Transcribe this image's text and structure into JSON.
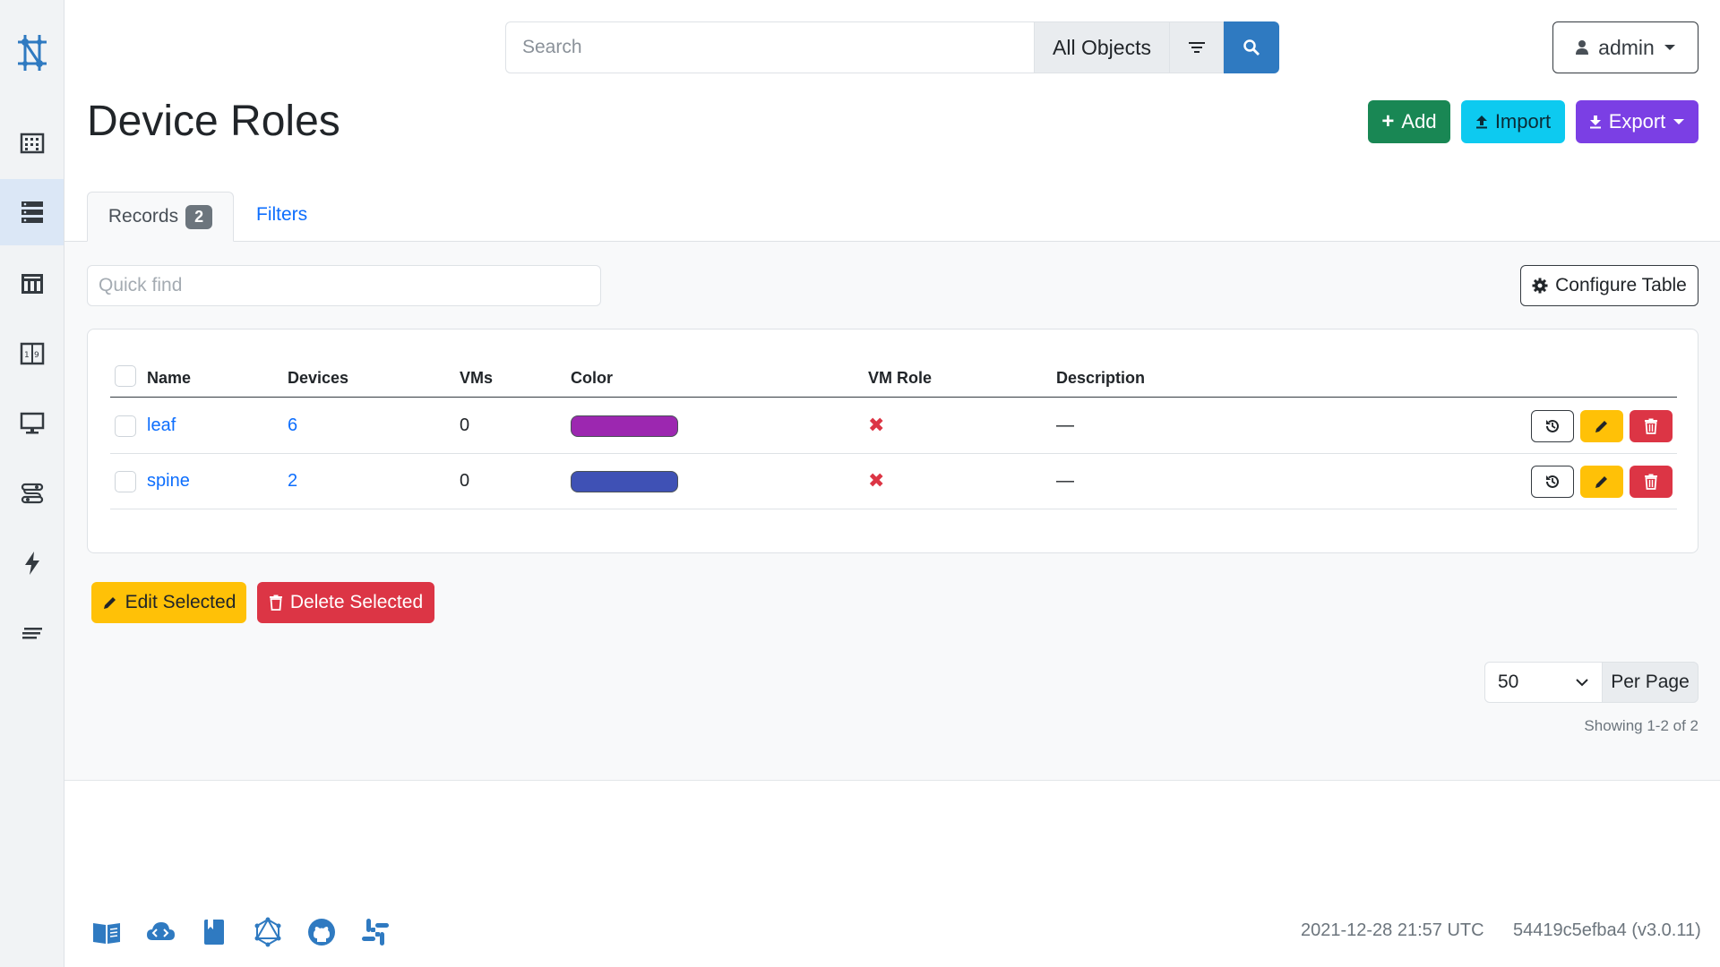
{
  "colors": {
    "primary": "#2f7ac1",
    "link": "#0d6efd",
    "success": "#198754",
    "info": "#0dcaf0",
    "purple": "#7b3fe4",
    "warning": "#ffc107",
    "danger": "#dc3545"
  },
  "sidebar": {
    "logo": "nautobot-logo-icon",
    "items": [
      {
        "icon": "building-icon",
        "active": false
      },
      {
        "icon": "server-rack-icon",
        "active": true
      },
      {
        "icon": "datacenter-icon",
        "active": false
      },
      {
        "icon": "ipam-icon",
        "active": false
      },
      {
        "icon": "monitor-icon",
        "active": false
      },
      {
        "icon": "circuits-icon",
        "active": false
      },
      {
        "icon": "lightning-icon",
        "active": false
      },
      {
        "icon": "lines-icon",
        "active": false
      }
    ]
  },
  "header": {
    "search_placeholder": "Search",
    "search_scope": "All Objects",
    "user": "admin"
  },
  "page": {
    "title": "Device Roles",
    "actions": {
      "add": "Add",
      "import": "Import",
      "export": "Export"
    }
  },
  "tabs": {
    "records_label": "Records",
    "records_count": "2",
    "filters_label": "Filters"
  },
  "toolbar": {
    "quickfind_placeholder": "Quick find",
    "configure_label": "Configure Table"
  },
  "table": {
    "columns": {
      "name": "Name",
      "devices": "Devices",
      "vms": "VMs",
      "color": "Color",
      "vm_role": "VM Role",
      "description": "Description"
    },
    "rows": [
      {
        "name": "leaf",
        "devices": "6",
        "vms": "0",
        "color": "#9c27b0",
        "vm_role": "✖",
        "description": "—"
      },
      {
        "name": "spine",
        "devices": "2",
        "vms": "0",
        "color": "#3f51b5",
        "vm_role": "✖",
        "description": "—"
      }
    ]
  },
  "bulk": {
    "edit_label": "Edit Selected",
    "delete_label": "Delete Selected"
  },
  "pagination": {
    "per_page_value": "50",
    "per_page_label": "Per Page",
    "showing": "Showing 1-2 of 2"
  },
  "footer": {
    "icons": [
      "docs-icon",
      "cloud-api-icon",
      "book-icon",
      "graphql-icon",
      "github-icon",
      "slack-icon"
    ],
    "timestamp": "2021-12-28 21:57 UTC",
    "version": "54419c5efba4 (v3.0.11)"
  }
}
